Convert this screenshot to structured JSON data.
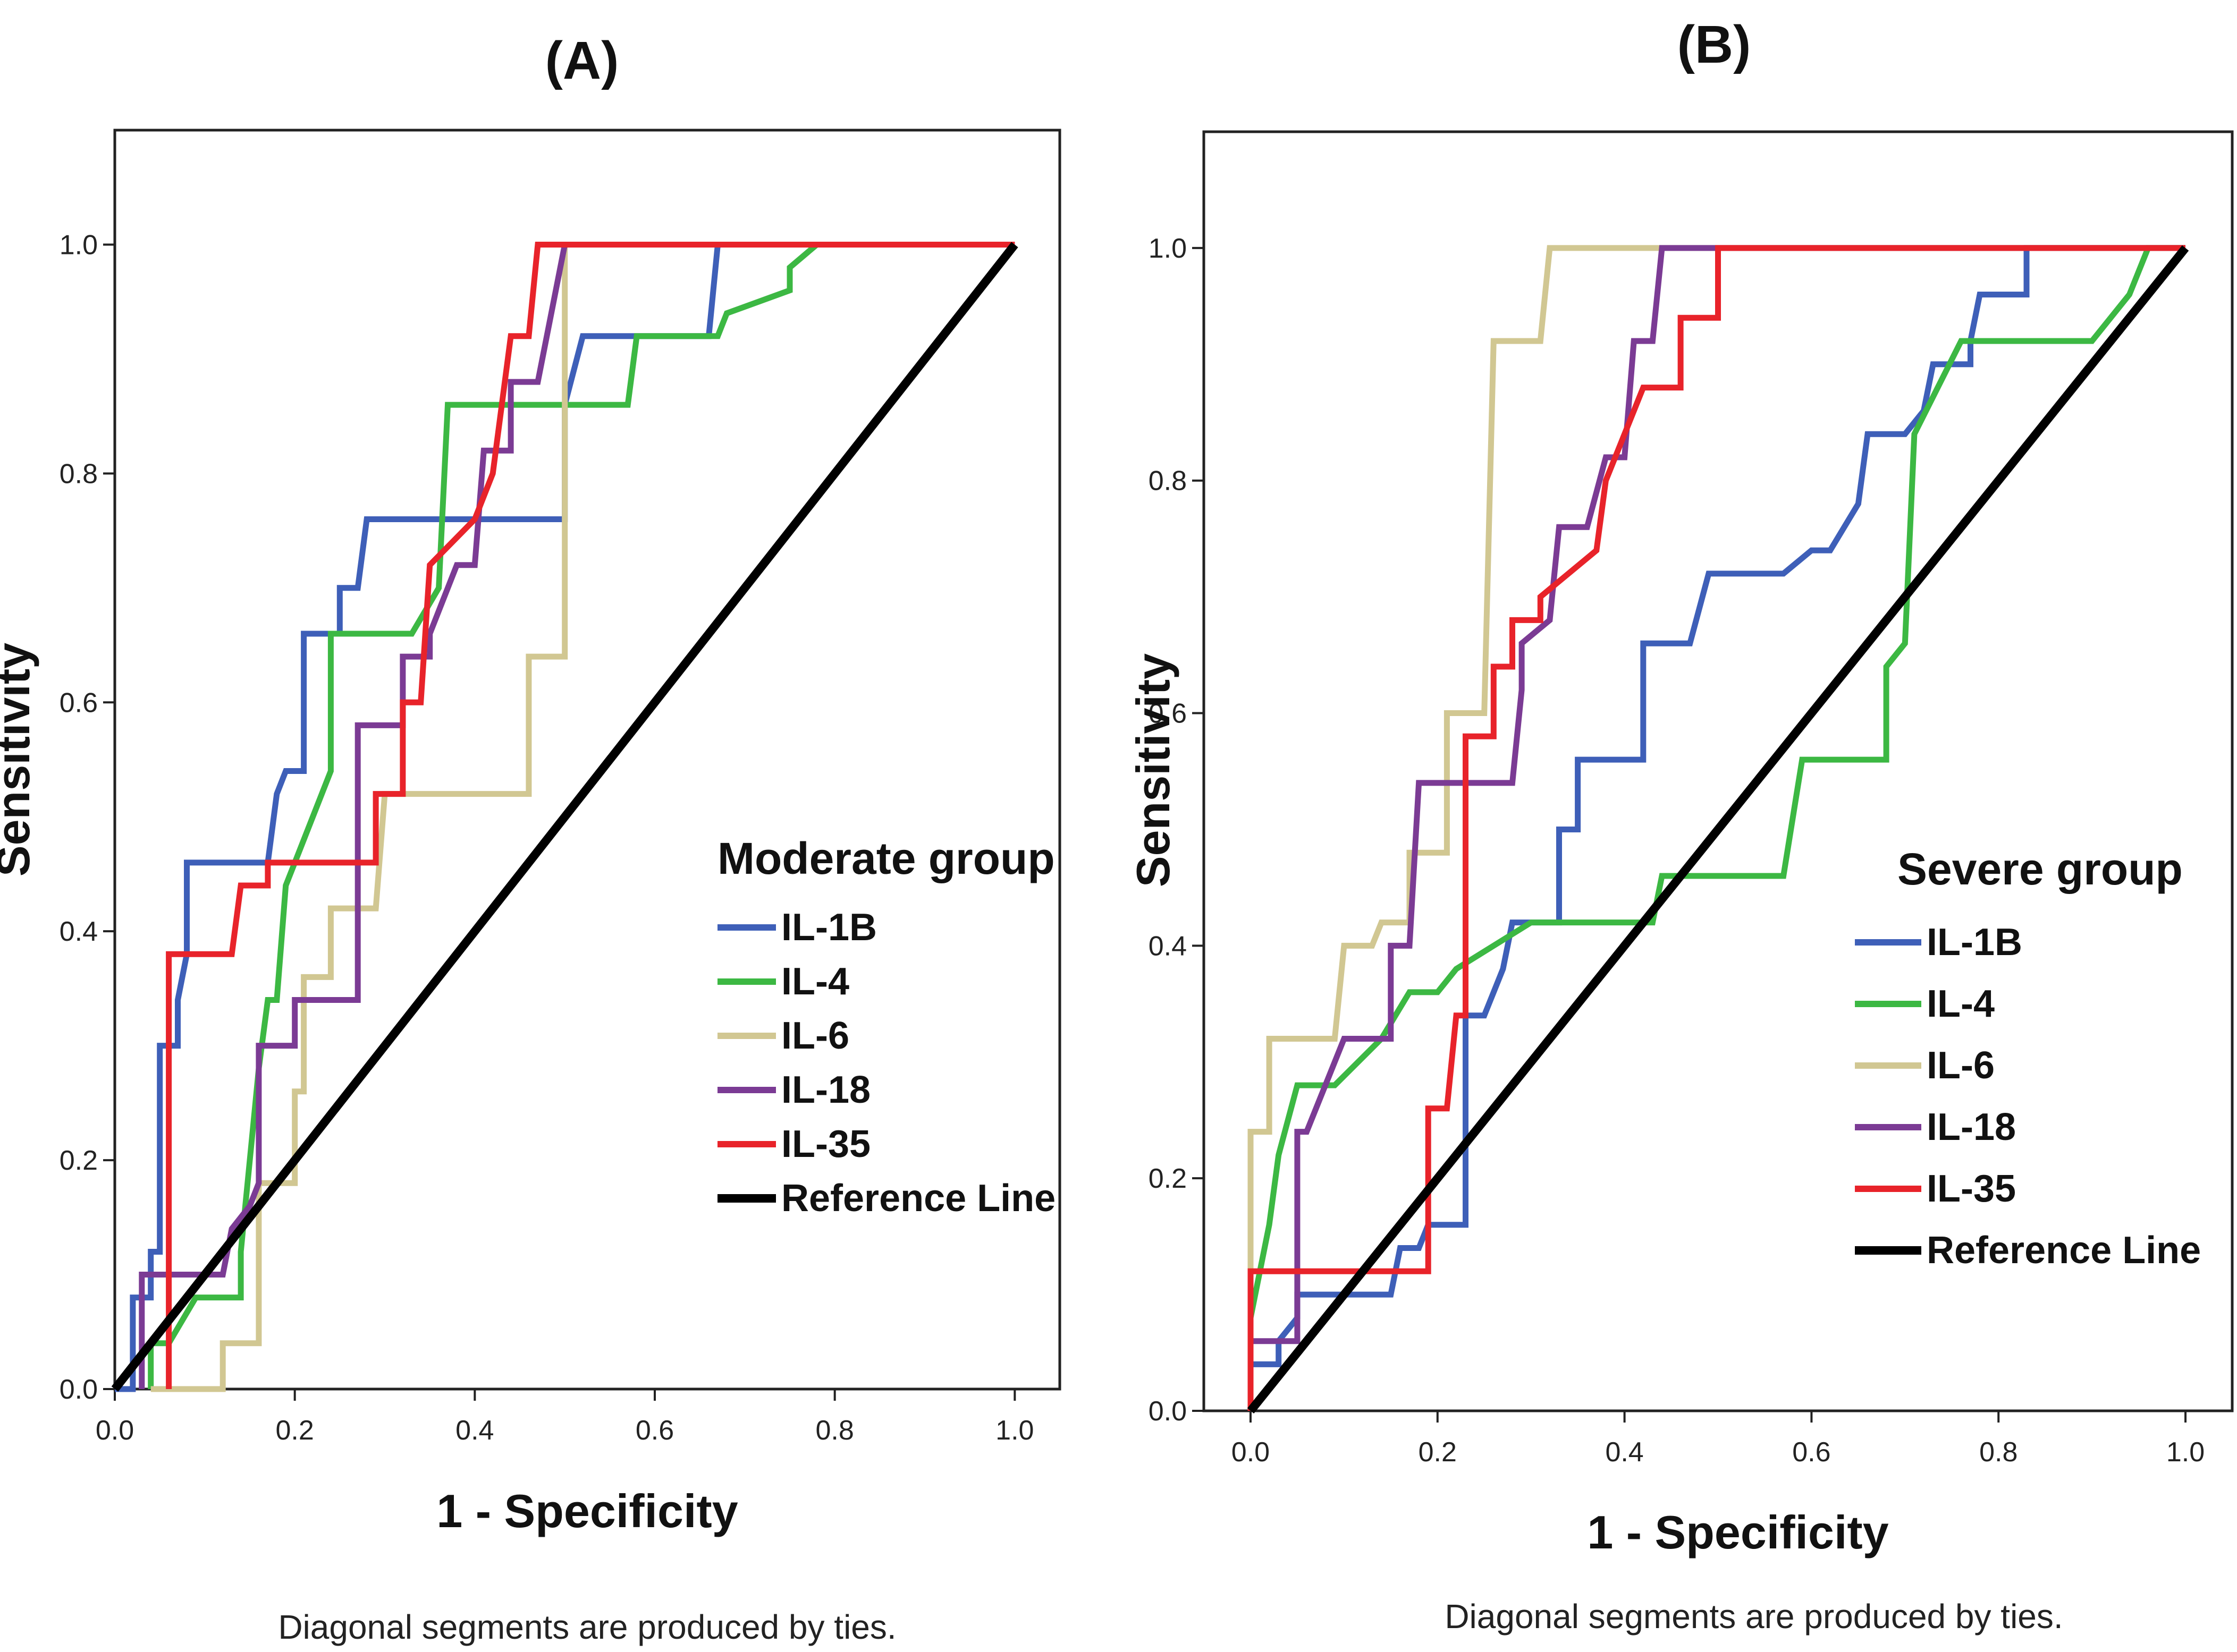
{
  "chart_data": [
    {
      "type": "line",
      "panel_label": "(A)",
      "title": "",
      "xlabel": "1 - Specificity",
      "ylabel": "Sensitivity",
      "xlim": [
        0,
        1.05
      ],
      "ylim": [
        0,
        1.1
      ],
      "x_ticks": [
        "0.0",
        "0.2",
        "0.4",
        "0.6",
        "0.8",
        "1.0"
      ],
      "y_ticks": [
        "0.0",
        "0.2",
        "0.4",
        "0.6",
        "0.8",
        "1.0"
      ],
      "legend_title": "Moderate group",
      "legend_position": "bottom-right",
      "footnote": "Diagonal segments are produced by ties.",
      "series": [
        {
          "name": "IL-1B",
          "color": "#3e5fb8",
          "points": [
            [
              0,
              0
            ],
            [
              0.02,
              0
            ],
            [
              0.02,
              0.08
            ],
            [
              0.04,
              0.08
            ],
            [
              0.04,
              0.12
            ],
            [
              0.05,
              0.12
            ],
            [
              0.05,
              0.3
            ],
            [
              0.07,
              0.3
            ],
            [
              0.07,
              0.34
            ],
            [
              0.08,
              0.38
            ],
            [
              0.08,
              0.46
            ],
            [
              0.17,
              0.46
            ],
            [
              0.18,
              0.52
            ],
            [
              0.19,
              0.54
            ],
            [
              0.21,
              0.54
            ],
            [
              0.21,
              0.66
            ],
            [
              0.25,
              0.66
            ],
            [
              0.25,
              0.7
            ],
            [
              0.27,
              0.7
            ],
            [
              0.28,
              0.76
            ],
            [
              0.5,
              0.76
            ],
            [
              0.5,
              0.86
            ],
            [
              0.52,
              0.92
            ],
            [
              0.66,
              0.92
            ],
            [
              0.67,
              1.0
            ],
            [
              1.0,
              1.0
            ]
          ]
        },
        {
          "name": "IL-4",
          "color": "#3cb843",
          "points": [
            [
              0.04,
              0
            ],
            [
              0.04,
              0.04
            ],
            [
              0.06,
              0.04
            ],
            [
              0.09,
              0.08
            ],
            [
              0.14,
              0.08
            ],
            [
              0.14,
              0.12
            ],
            [
              0.15,
              0.2
            ],
            [
              0.16,
              0.28
            ],
            [
              0.17,
              0.34
            ],
            [
              0.18,
              0.34
            ],
            [
              0.19,
              0.44
            ],
            [
              0.2,
              0.46
            ],
            [
              0.24,
              0.54
            ],
            [
              0.24,
              0.66
            ],
            [
              0.33,
              0.66
            ],
            [
              0.36,
              0.7
            ],
            [
              0.37,
              0.86
            ],
            [
              0.5,
              0.86
            ],
            [
              0.57,
              0.86
            ],
            [
              0.58,
              0.92
            ],
            [
              0.67,
              0.92
            ],
            [
              0.68,
              0.94
            ],
            [
              0.75,
              0.96
            ],
            [
              0.75,
              0.98
            ],
            [
              0.78,
              1.0
            ],
            [
              1.0,
              1.0
            ]
          ]
        },
        {
          "name": "IL-6",
          "color": "#d1c792",
          "points": [
            [
              0.04,
              0
            ],
            [
              0.12,
              0
            ],
            [
              0.12,
              0.04
            ],
            [
              0.16,
              0.04
            ],
            [
              0.16,
              0.18
            ],
            [
              0.2,
              0.18
            ],
            [
              0.2,
              0.26
            ],
            [
              0.21,
              0.26
            ],
            [
              0.21,
              0.36
            ],
            [
              0.24,
              0.36
            ],
            [
              0.24,
              0.42
            ],
            [
              0.29,
              0.42
            ],
            [
              0.3,
              0.52
            ],
            [
              0.46,
              0.52
            ],
            [
              0.46,
              0.64
            ],
            [
              0.5,
              0.64
            ],
            [
              0.5,
              1.0
            ],
            [
              1.0,
              1.0
            ]
          ]
        },
        {
          "name": "IL-18",
          "color": "#7b3b94",
          "points": [
            [
              0.03,
              0
            ],
            [
              0.03,
              0.1
            ],
            [
              0.12,
              0.1
            ],
            [
              0.13,
              0.14
            ],
            [
              0.15,
              0.16
            ],
            [
              0.16,
              0.18
            ],
            [
              0.16,
              0.3
            ],
            [
              0.2,
              0.3
            ],
            [
              0.2,
              0.34
            ],
            [
              0.27,
              0.34
            ],
            [
              0.27,
              0.58
            ],
            [
              0.32,
              0.58
            ],
            [
              0.32,
              0.64
            ],
            [
              0.35,
              0.64
            ],
            [
              0.35,
              0.66
            ],
            [
              0.38,
              0.72
            ],
            [
              0.4,
              0.72
            ],
            [
              0.41,
              0.82
            ],
            [
              0.44,
              0.82
            ],
            [
              0.44,
              0.88
            ],
            [
              0.47,
              0.88
            ],
            [
              0.5,
              1.0
            ],
            [
              1.0,
              1.0
            ]
          ]
        },
        {
          "name": "IL-35",
          "color": "#e8232a",
          "points": [
            [
              0.06,
              0
            ],
            [
              0.06,
              0.38
            ],
            [
              0.13,
              0.38
            ],
            [
              0.14,
              0.44
            ],
            [
              0.17,
              0.44
            ],
            [
              0.17,
              0.46
            ],
            [
              0.29,
              0.46
            ],
            [
              0.29,
              0.52
            ],
            [
              0.32,
              0.52
            ],
            [
              0.32,
              0.6
            ],
            [
              0.34,
              0.6
            ],
            [
              0.35,
              0.72
            ],
            [
              0.4,
              0.76
            ],
            [
              0.42,
              0.8
            ],
            [
              0.44,
              0.92
            ],
            [
              0.46,
              0.92
            ],
            [
              0.47,
              1.0
            ],
            [
              1.0,
              1.0
            ]
          ]
        },
        {
          "name": "Reference Line",
          "color": "#000000",
          "points": [
            [
              0,
              0
            ],
            [
              1.0,
              1.0
            ]
          ]
        }
      ]
    },
    {
      "type": "line",
      "panel_label": "(B)",
      "title": "",
      "xlabel": "1 - Specificity",
      "ylabel": "Sensitivity",
      "xlim": [
        -0.05,
        1.05
      ],
      "ylim": [
        0,
        1.1
      ],
      "x_ticks": [
        "0.0",
        "0.2",
        "0.4",
        "0.6",
        "0.8",
        "1.0"
      ],
      "y_ticks": [
        "0.0",
        "0.2",
        "0.4",
        "0.6",
        "0.8",
        "1.0"
      ],
      "legend_title": "Severe group",
      "legend_position": "bottom-right",
      "footnote": "Diagonal segments are produced by ties.",
      "series": [
        {
          "name": "IL-1B",
          "color": "#3e5fb8",
          "points": [
            [
              0,
              0
            ],
            [
              0,
              0.04
            ],
            [
              0.03,
              0.04
            ],
            [
              0.03,
              0.06
            ],
            [
              0.05,
              0.08
            ],
            [
              0.05,
              0.1
            ],
            [
              0.15,
              0.1
            ],
            [
              0.16,
              0.14
            ],
            [
              0.18,
              0.14
            ],
            [
              0.19,
              0.16
            ],
            [
              0.23,
              0.16
            ],
            [
              0.23,
              0.34
            ],
            [
              0.25,
              0.34
            ],
            [
              0.26,
              0.36
            ],
            [
              0.27,
              0.38
            ],
            [
              0.28,
              0.42
            ],
            [
              0.33,
              0.42
            ],
            [
              0.33,
              0.5
            ],
            [
              0.35,
              0.5
            ],
            [
              0.35,
              0.56
            ],
            [
              0.42,
              0.56
            ],
            [
              0.42,
              0.66
            ],
            [
              0.47,
              0.66
            ],
            [
              0.49,
              0.72
            ],
            [
              0.57,
              0.72
            ],
            [
              0.6,
              0.74
            ],
            [
              0.62,
              0.74
            ],
            [
              0.65,
              0.78
            ],
            [
              0.66,
              0.84
            ],
            [
              0.7,
              0.84
            ],
            [
              0.72,
              0.86
            ],
            [
              0.73,
              0.9
            ],
            [
              0.77,
              0.9
            ],
            [
              0.77,
              0.92
            ],
            [
              0.78,
              0.96
            ],
            [
              0.83,
              0.96
            ],
            [
              0.83,
              1.0
            ],
            [
              1.0,
              1.0
            ]
          ]
        },
        {
          "name": "IL-4",
          "color": "#3cb843",
          "points": [
            [
              0,
              0.08
            ],
            [
              0.02,
              0.16
            ],
            [
              0.03,
              0.22
            ],
            [
              0.05,
              0.28
            ],
            [
              0.09,
              0.28
            ],
            [
              0.14,
              0.32
            ],
            [
              0.17,
              0.36
            ],
            [
              0.2,
              0.36
            ],
            [
              0.22,
              0.38
            ],
            [
              0.3,
              0.42
            ],
            [
              0.43,
              0.42
            ],
            [
              0.44,
              0.46
            ],
            [
              0.57,
              0.46
            ],
            [
              0.59,
              0.56
            ],
            [
              0.68,
              0.56
            ],
            [
              0.68,
              0.64
            ],
            [
              0.7,
              0.66
            ],
            [
              0.71,
              0.84
            ],
            [
              0.76,
              0.92
            ],
            [
              0.9,
              0.92
            ],
            [
              0.94,
              0.96
            ],
            [
              0.96,
              1.0
            ],
            [
              1.0,
              1.0
            ]
          ]
        },
        {
          "name": "IL-6",
          "color": "#d1c792",
          "points": [
            [
              0,
              0.06
            ],
            [
              0,
              0.24
            ],
            [
              0.02,
              0.24
            ],
            [
              0.02,
              0.32
            ],
            [
              0.09,
              0.32
            ],
            [
              0.1,
              0.4
            ],
            [
              0.13,
              0.4
            ],
            [
              0.14,
              0.42
            ],
            [
              0.17,
              0.42
            ],
            [
              0.17,
              0.48
            ],
            [
              0.21,
              0.48
            ],
            [
              0.21,
              0.6
            ],
            [
              0.25,
              0.6
            ],
            [
              0.26,
              0.92
            ],
            [
              0.31,
              0.92
            ],
            [
              0.32,
              1.0
            ],
            [
              1.0,
              1.0
            ]
          ]
        },
        {
          "name": "IL-18",
          "color": "#7b3b94",
          "points": [
            [
              0,
              0.05
            ],
            [
              0,
              0.06
            ],
            [
              0.05,
              0.06
            ],
            [
              0.05,
              0.24
            ],
            [
              0.06,
              0.24
            ],
            [
              0.08,
              0.28
            ],
            [
              0.1,
              0.32
            ],
            [
              0.15,
              0.32
            ],
            [
              0.15,
              0.4
            ],
            [
              0.17,
              0.4
            ],
            [
              0.18,
              0.54
            ],
            [
              0.28,
              0.54
            ],
            [
              0.29,
              0.62
            ],
            [
              0.29,
              0.66
            ],
            [
              0.32,
              0.68
            ],
            [
              0.33,
              0.76
            ],
            [
              0.36,
              0.76
            ],
            [
              0.38,
              0.82
            ],
            [
              0.4,
              0.82
            ],
            [
              0.41,
              0.92
            ],
            [
              0.43,
              0.92
            ],
            [
              0.44,
              1.0
            ],
            [
              1.0,
              1.0
            ]
          ]
        },
        {
          "name": "IL-35",
          "color": "#e8232a",
          "points": [
            [
              0,
              0
            ],
            [
              0,
              0.12
            ],
            [
              0.19,
              0.12
            ],
            [
              0.19,
              0.26
            ],
            [
              0.21,
              0.26
            ],
            [
              0.22,
              0.34
            ],
            [
              0.23,
              0.34
            ],
            [
              0.23,
              0.58
            ],
            [
              0.26,
              0.58
            ],
            [
              0.26,
              0.64
            ],
            [
              0.28,
              0.64
            ],
            [
              0.28,
              0.68
            ],
            [
              0.31,
              0.68
            ],
            [
              0.31,
              0.7
            ],
            [
              0.37,
              0.74
            ],
            [
              0.38,
              0.8
            ],
            [
              0.41,
              0.86
            ],
            [
              0.42,
              0.88
            ],
            [
              0.46,
              0.88
            ],
            [
              0.46,
              0.94
            ],
            [
              0.5,
              0.94
            ],
            [
              0.5,
              1.0
            ],
            [
              1.0,
              1.0
            ]
          ]
        },
        {
          "name": "Reference Line",
          "color": "#000000",
          "points": [
            [
              0,
              0
            ],
            [
              1.0,
              1.0
            ]
          ]
        }
      ]
    }
  ]
}
